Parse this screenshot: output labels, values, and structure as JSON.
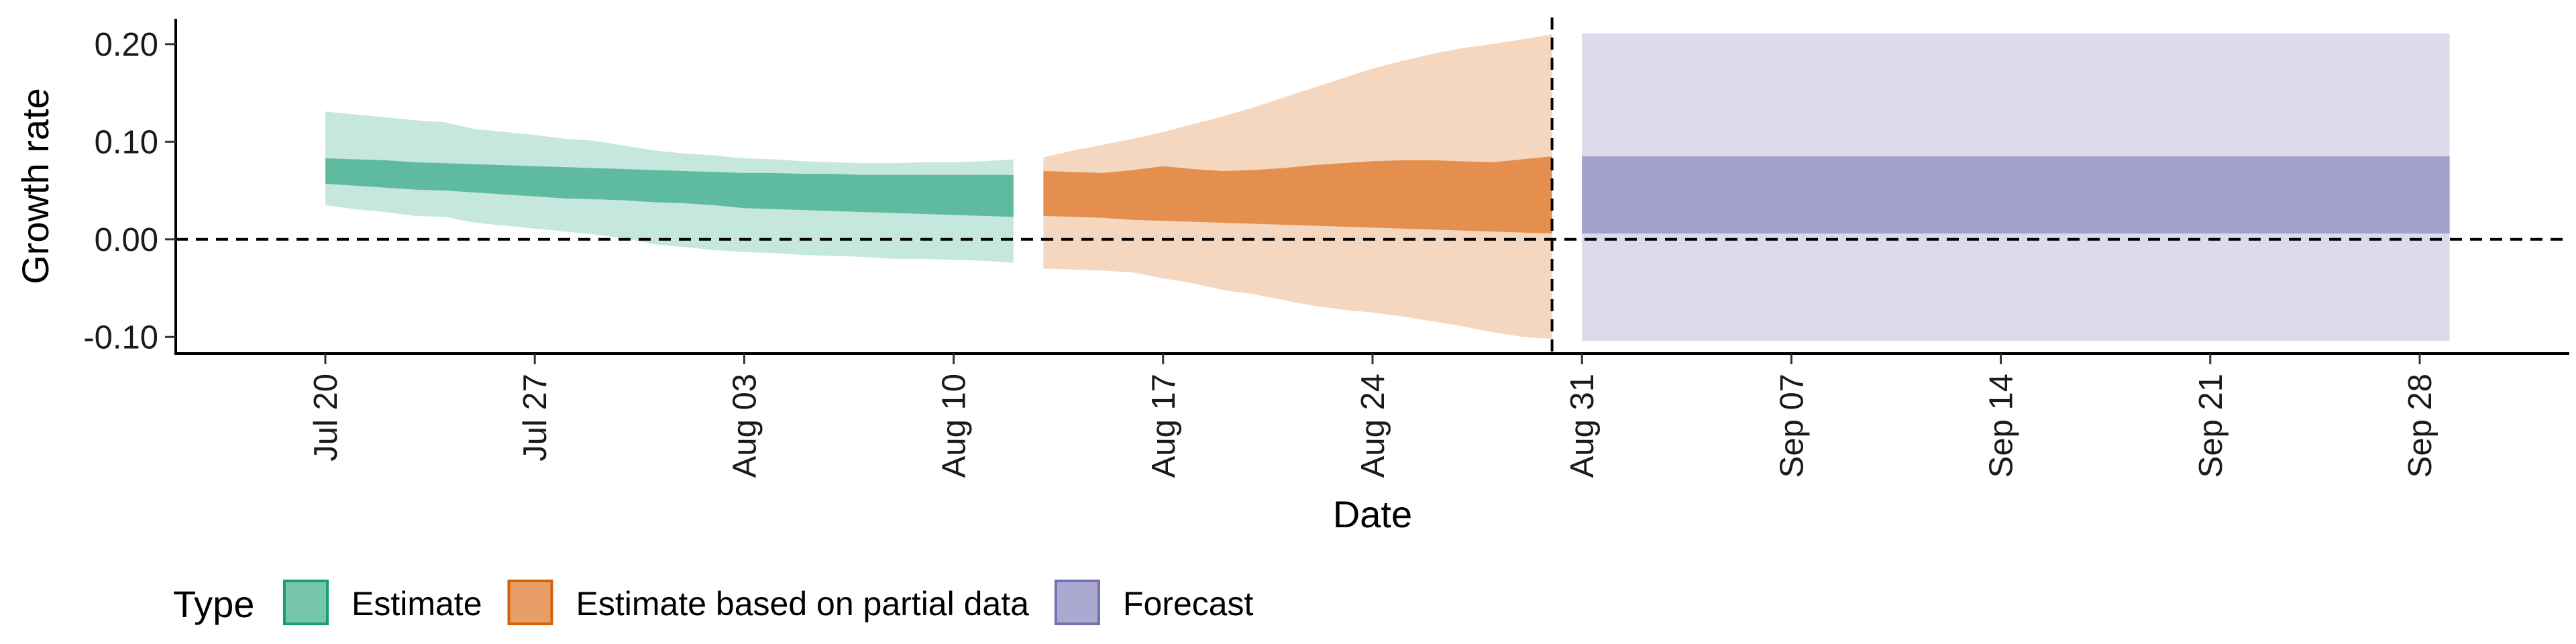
{
  "chart_data": {
    "type": "area",
    "xlabel": "Date",
    "ylabel": "Growth rate",
    "xlim": [
      "2020-07-15",
      "2020-10-03"
    ],
    "ylim": [
      -0.117,
      0.226
    ],
    "yticks": [
      -0.1,
      0.0,
      0.1,
      0.2
    ],
    "ytick_labels": [
      "-0.10",
      "0.00",
      "0.10",
      "0.20"
    ],
    "xticks": [
      "2020-07-20",
      "2020-07-27",
      "2020-08-03",
      "2020-08-10",
      "2020-08-17",
      "2020-08-24",
      "2020-08-31",
      "2020-09-07",
      "2020-09-14",
      "2020-09-21",
      "2020-09-28"
    ],
    "xtick_labels": [
      "Jul 20",
      "Jul 27",
      "Aug 03",
      "Aug 10",
      "Aug 17",
      "Aug 24",
      "Aug 31",
      "Sep 07",
      "Sep 14",
      "Sep 21",
      "Sep 28"
    ],
    "hline_y": 0,
    "vline_x": "2020-08-30",
    "legend": {
      "title": "Type",
      "position": "bottom-left",
      "items": [
        {
          "label": "Estimate",
          "color": "#1b9e77"
        },
        {
          "label": "Estimate based on partial data",
          "color": "#d95f02"
        },
        {
          "label": "Forecast",
          "color": "#7570b3"
        }
      ]
    },
    "series": [
      {
        "name": "Estimate",
        "color": "#1b9e77",
        "x": [
          "2020-07-20",
          "2020-07-21",
          "2020-07-22",
          "2020-07-23",
          "2020-07-24",
          "2020-07-25",
          "2020-07-26",
          "2020-07-27",
          "2020-07-28",
          "2020-07-29",
          "2020-07-30",
          "2020-07-31",
          "2020-08-01",
          "2020-08-02",
          "2020-08-03",
          "2020-08-04",
          "2020-08-05",
          "2020-08-06",
          "2020-08-07",
          "2020-08-08",
          "2020-08-09",
          "2020-08-10",
          "2020-08-11",
          "2020-08-12"
        ],
        "lower90": [
          0.035,
          0.031,
          0.028,
          0.024,
          0.023,
          0.017,
          0.014,
          0.011,
          0.008,
          0.005,
          0.001,
          -0.005,
          -0.008,
          -0.011,
          -0.013,
          -0.014,
          -0.016,
          -0.017,
          -0.018,
          -0.02,
          -0.02,
          -0.021,
          -0.022,
          -0.024
        ],
        "upper90": [
          0.131,
          0.128,
          0.125,
          0.122,
          0.12,
          0.113,
          0.11,
          0.107,
          0.103,
          0.101,
          0.096,
          0.091,
          0.088,
          0.086,
          0.083,
          0.082,
          0.08,
          0.079,
          0.078,
          0.078,
          0.079,
          0.079,
          0.08,
          0.082
        ],
        "lower50": [
          0.057,
          0.055,
          0.053,
          0.051,
          0.05,
          0.048,
          0.046,
          0.044,
          0.042,
          0.041,
          0.04,
          0.038,
          0.037,
          0.035,
          0.032,
          0.031,
          0.03,
          0.029,
          0.028,
          0.027,
          0.026,
          0.025,
          0.024,
          0.023
        ],
        "upper50": [
          0.083,
          0.082,
          0.081,
          0.079,
          0.078,
          0.077,
          0.076,
          0.075,
          0.074,
          0.073,
          0.072,
          0.071,
          0.07,
          0.069,
          0.068,
          0.068,
          0.067,
          0.067,
          0.066,
          0.066,
          0.066,
          0.066,
          0.066,
          0.066
        ]
      },
      {
        "name": "Estimate based on partial data",
        "color": "#d95f02",
        "x": [
          "2020-08-13",
          "2020-08-14",
          "2020-08-15",
          "2020-08-16",
          "2020-08-17",
          "2020-08-18",
          "2020-08-19",
          "2020-08-20",
          "2020-08-21",
          "2020-08-22",
          "2020-08-23",
          "2020-08-24",
          "2020-08-25",
          "2020-08-26",
          "2020-08-27",
          "2020-08-28",
          "2020-08-29",
          "2020-08-30"
        ],
        "lower90": [
          -0.03,
          -0.031,
          -0.032,
          -0.034,
          -0.04,
          -0.045,
          -0.052,
          -0.056,
          -0.062,
          -0.068,
          -0.072,
          -0.075,
          -0.079,
          -0.084,
          -0.089,
          -0.095,
          -0.1,
          -0.102
        ],
        "upper90": [
          0.084,
          0.091,
          0.097,
          0.103,
          0.11,
          0.118,
          0.126,
          0.135,
          0.145,
          0.155,
          0.165,
          0.175,
          0.183,
          0.19,
          0.196,
          0.2,
          0.205,
          0.21
        ],
        "lower50": [
          0.024,
          0.023,
          0.022,
          0.02,
          0.019,
          0.018,
          0.017,
          0.016,
          0.015,
          0.014,
          0.013,
          0.012,
          0.011,
          0.01,
          0.009,
          0.008,
          0.007,
          0.006
        ],
        "upper50": [
          0.07,
          0.069,
          0.068,
          0.071,
          0.075,
          0.072,
          0.07,
          0.071,
          0.073,
          0.076,
          0.078,
          0.08,
          0.081,
          0.081,
          0.08,
          0.079,
          0.082,
          0.085
        ]
      },
      {
        "name": "Forecast",
        "color": "#7570b3",
        "x": [
          "2020-08-31",
          "2020-09-29"
        ],
        "lower90": [
          -0.104,
          -0.104
        ],
        "upper90": [
          0.211,
          0.211
        ],
        "lower50": [
          0.006,
          0.006
        ],
        "upper50": [
          0.085,
          0.085
        ]
      }
    ]
  }
}
